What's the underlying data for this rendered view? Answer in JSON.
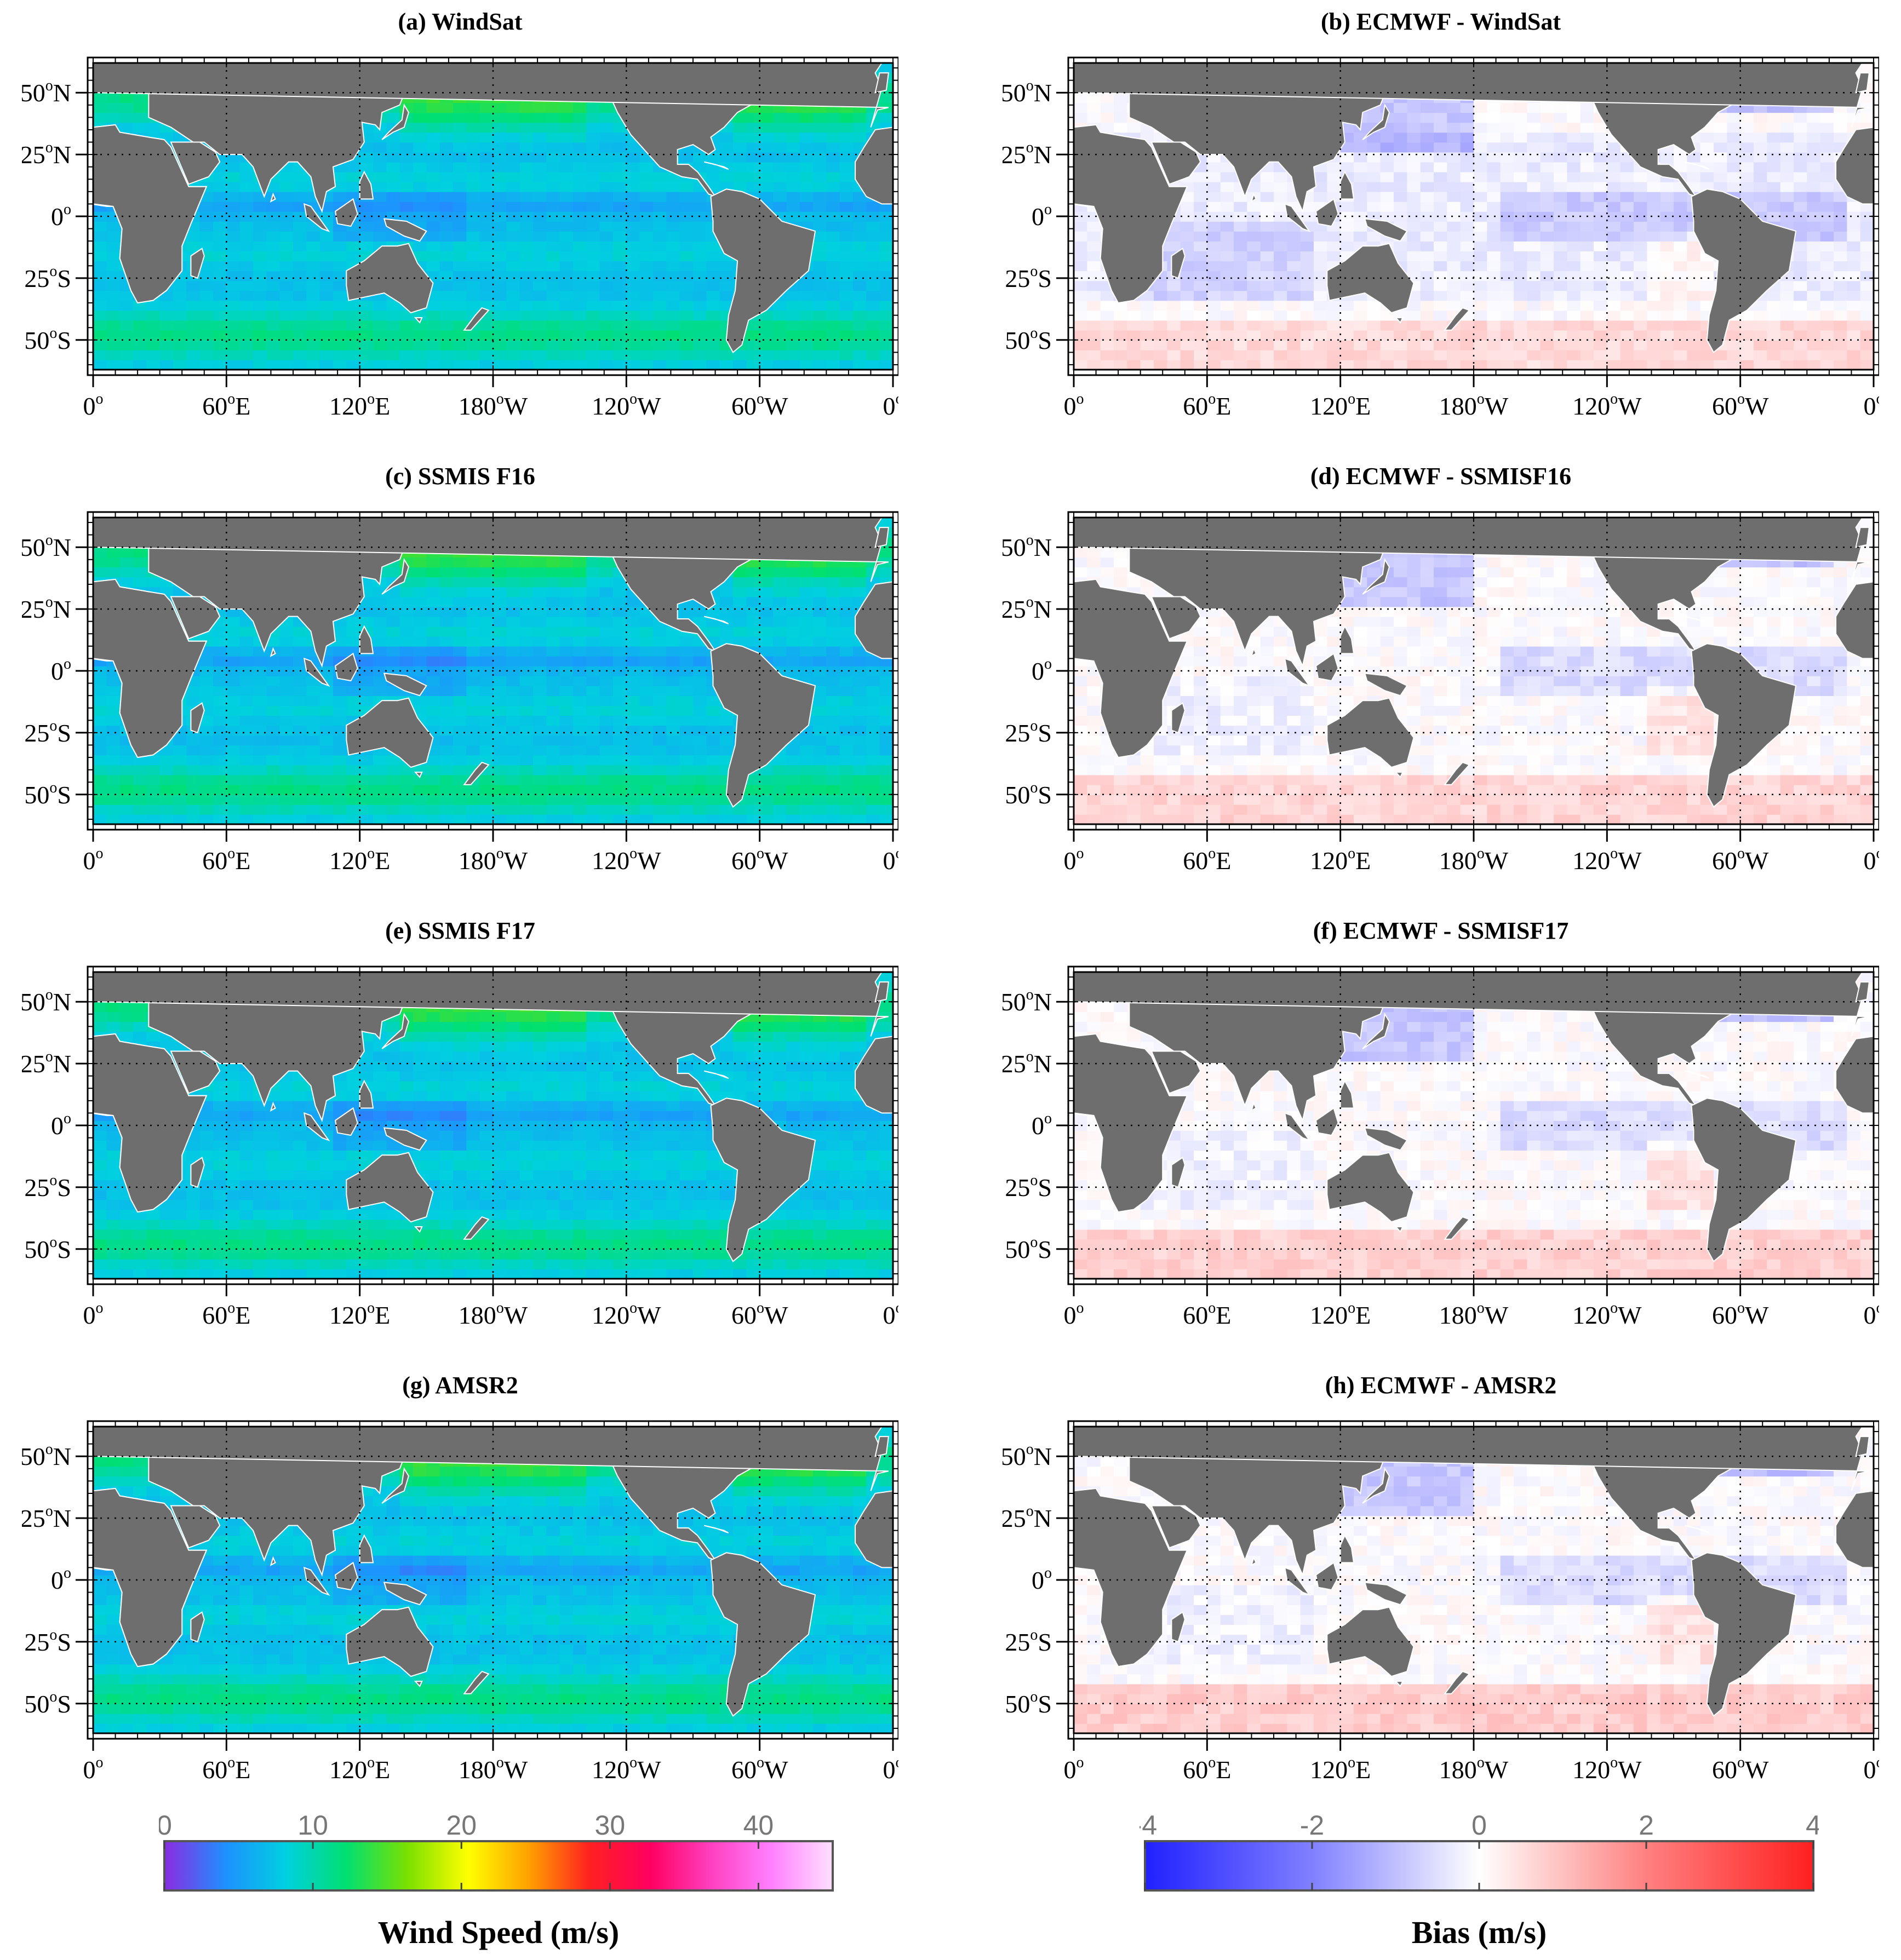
{
  "panels": [
    {
      "id": "a",
      "title": "(a) WindSat",
      "kind": "speed",
      "variant": 0
    },
    {
      "id": "b",
      "title": "(b) ECMWF - WindSat",
      "kind": "bias",
      "variant": 0
    },
    {
      "id": "c",
      "title": "(c) SSMIS F16",
      "kind": "speed",
      "variant": 1
    },
    {
      "id": "d",
      "title": "(d) ECMWF - SSMISF16",
      "kind": "bias",
      "variant": 1
    },
    {
      "id": "e",
      "title": "(e) SSMIS F17",
      "kind": "speed",
      "variant": 2
    },
    {
      "id": "f",
      "title": "(f) ECMWF - SSMISF17",
      "kind": "bias",
      "variant": 2
    },
    {
      "id": "g",
      "title": "(g) AMSR2",
      "kind": "speed",
      "variant": 3
    },
    {
      "id": "h",
      "title": "(h) ECMWF - AMSR2",
      "kind": "bias",
      "variant": 3
    }
  ],
  "lat_labels": [
    {
      "deg": "50",
      "hem": "N",
      "lat": 50
    },
    {
      "deg": "25",
      "hem": "N",
      "lat": 25
    },
    {
      "deg": "0",
      "hem": "",
      "lat": 0
    },
    {
      "deg": "25",
      "hem": "S",
      "lat": -25
    },
    {
      "deg": "50",
      "hem": "S",
      "lat": -50
    }
  ],
  "lon_labels": [
    {
      "deg": "0",
      "hem": "",
      "lon": 0
    },
    {
      "deg": "60",
      "hem": "E",
      "lon": 60
    },
    {
      "deg": "120",
      "hem": "E",
      "lon": 120
    },
    {
      "deg": "180",
      "hem": "W",
      "lon": 180
    },
    {
      "deg": "120",
      "hem": "W",
      "lon": 240
    },
    {
      "deg": "60",
      "hem": "W",
      "lon": 300
    },
    {
      "deg": "0",
      "hem": "",
      "lon": 360
    }
  ],
  "lat_range": [
    -62,
    62
  ],
  "lon_range": [
    0,
    360
  ],
  "speed_colorbar": {
    "label": "Wind Speed (m/s)",
    "ticks": [
      "0",
      "10",
      "20",
      "30",
      "40"
    ],
    "tick_values": [
      0,
      10,
      20,
      30,
      40
    ],
    "range": [
      0,
      45
    ],
    "stops": [
      "#8a2be2",
      "#1e90ff",
      "#00d0e0",
      "#00e070",
      "#7ae000",
      "#ffff00",
      "#ffa000",
      "#ff2020",
      "#ff0060",
      "#ff40c0",
      "#ff80ff",
      "#ffe0ff"
    ]
  },
  "bias_colorbar": {
    "label": "Bias (m/s)",
    "ticks": [
      "-4",
      "-2",
      "0",
      "2",
      "4"
    ],
    "tick_values": [
      -4,
      -2,
      0,
      2,
      4
    ],
    "range": [
      -4,
      4
    ],
    "stops": [
      "#2020ff",
      "#8080ff",
      "#ffffff",
      "#ff8080",
      "#ff2020"
    ]
  },
  "colors": {
    "land": "#6e6e6e",
    "grid": "#000000",
    "background": "#ffffff"
  }
}
